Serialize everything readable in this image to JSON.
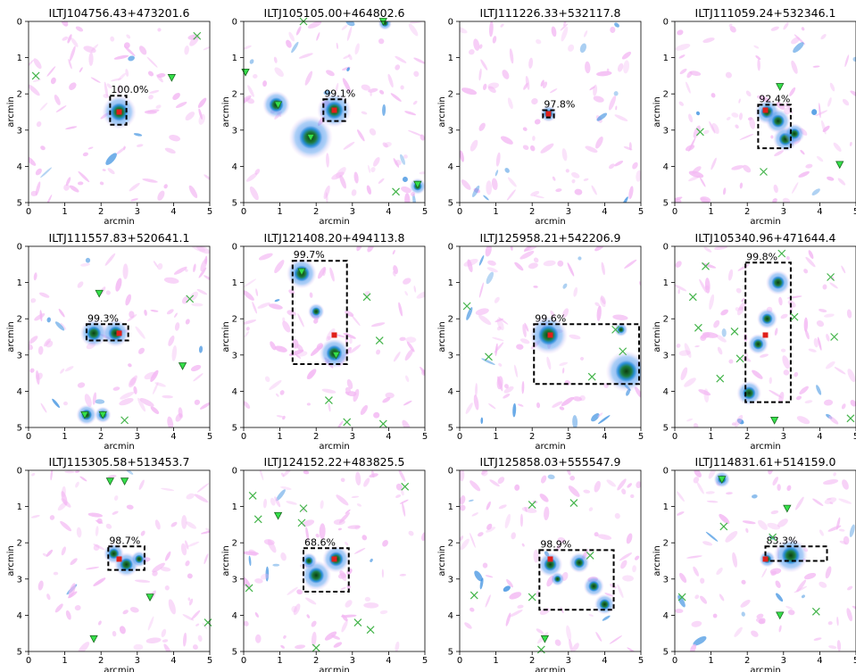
{
  "figure": {
    "xlabel": "arcmin",
    "ylabel": "arcmin",
    "x_ticks": [
      "0",
      "1",
      "2",
      "3",
      "4",
      "5"
    ],
    "y_ticks": [
      "0",
      "1",
      "2",
      "3",
      "4",
      "5"
    ]
  },
  "colors": {
    "background": "#ffffff",
    "faint": "#f3b8f3",
    "mid": "#2a8fd8",
    "core": "#1c7a3a",
    "center": "#e0201b",
    "marker_triangle": "#35e04a",
    "marker_x": "#43b44a",
    "box": "#000000"
  },
  "chart_data": [
    {
      "type": "image",
      "title": "ILTJ104756.43+473201.6",
      "xlim": [
        0,
        5
      ],
      "ylim": [
        5,
        0
      ],
      "detection_box": {
        "x": [
          2.25,
          2.7
        ],
        "y": [
          2.05,
          2.85
        ]
      },
      "confidence_label": "100.0%",
      "center": [
        2.5,
        2.5
      ],
      "sources": [
        {
          "x": 2.5,
          "y": 2.5,
          "size": 0.25
        }
      ],
      "triangles": [
        [
          3.95,
          1.55
        ]
      ],
      "crosses": [
        [
          0.2,
          1.5
        ],
        [
          4.65,
          0.4
        ]
      ]
    },
    {
      "type": "image",
      "title": "ILTJ105105.00+464802.6",
      "xlim": [
        0,
        5
      ],
      "ylim": [
        5,
        0
      ],
      "detection_box": {
        "x": [
          2.2,
          2.8
        ],
        "y": [
          2.15,
          2.75
        ]
      },
      "confidence_label": "99.1%",
      "center": [
        2.5,
        2.45
      ],
      "sources": [
        {
          "x": 2.5,
          "y": 2.45,
          "size": 0.25
        },
        {
          "x": 1.85,
          "y": 3.2,
          "size": 0.32
        },
        {
          "x": 0.9,
          "y": 2.3,
          "size": 0.2
        },
        {
          "x": 4.8,
          "y": 4.55,
          "size": 0.12
        },
        {
          "x": 3.9,
          "y": 0.05,
          "size": 0.1
        }
      ],
      "triangles": [
        [
          1.85,
          3.2
        ],
        [
          0.95,
          2.3
        ],
        [
          4.8,
          4.5
        ],
        [
          0.05,
          1.4
        ],
        [
          3.85,
          0.0
        ]
      ],
      "crosses": [
        [
          1.65,
          0.0
        ],
        [
          4.2,
          4.7
        ]
      ]
    },
    {
      "type": "image",
      "title": "ILTJ111226.33+532117.8",
      "xlim": [
        0,
        5
      ],
      "ylim": [
        5,
        0
      ],
      "detection_box": {
        "x": [
          2.3,
          2.6
        ],
        "y": [
          2.45,
          2.65
        ]
      },
      "confidence_label": "97.8%",
      "center": [
        2.45,
        2.55
      ],
      "sources": [
        {
          "x": 2.45,
          "y": 2.55,
          "size": 0.12
        }
      ],
      "triangles": [],
      "crosses": []
    },
    {
      "type": "image",
      "title": "ILTJ111059.24+532346.1",
      "xlim": [
        0,
        5
      ],
      "ylim": [
        5,
        0
      ],
      "detection_box": {
        "x": [
          2.3,
          3.2
        ],
        "y": [
          2.3,
          3.5
        ]
      },
      "confidence_label": "92.4%",
      "center": [
        2.5,
        2.45
      ],
      "sources": [
        {
          "x": 2.55,
          "y": 2.5,
          "size": 0.18
        },
        {
          "x": 2.85,
          "y": 2.75,
          "size": 0.18
        },
        {
          "x": 3.05,
          "y": 3.25,
          "size": 0.18
        },
        {
          "x": 3.3,
          "y": 3.1,
          "size": 0.15
        }
      ],
      "triangles": [
        [
          2.9,
          1.8
        ],
        [
          4.55,
          3.95
        ]
      ],
      "crosses": [
        [
          0.7,
          3.05
        ],
        [
          2.45,
          4.15
        ]
      ]
    },
    {
      "type": "image",
      "title": "ILTJ111557.83+520641.1",
      "xlim": [
        0,
        5
      ],
      "ylim": [
        5,
        0
      ],
      "detection_box": {
        "x": [
          1.6,
          2.75
        ],
        "y": [
          2.15,
          2.6
        ]
      },
      "confidence_label": "99.3%",
      "center": [
        2.5,
        2.4
      ],
      "sources": [
        {
          "x": 1.8,
          "y": 2.4,
          "size": 0.2
        },
        {
          "x": 2.4,
          "y": 2.4,
          "size": 0.2
        },
        {
          "x": 1.6,
          "y": 4.65,
          "size": 0.15
        },
        {
          "x": 2.05,
          "y": 4.65,
          "size": 0.12
        }
      ],
      "triangles": [
        [
          1.95,
          1.3
        ],
        [
          4.25,
          3.3
        ],
        [
          1.55,
          4.65
        ],
        [
          2.05,
          4.65
        ]
      ],
      "crosses": [
        [
          4.45,
          1.45
        ],
        [
          2.65,
          4.8
        ]
      ]
    },
    {
      "type": "image",
      "title": "ILTJ121408.20+494113.8",
      "xlim": [
        0,
        5
      ],
      "ylim": [
        5,
        0
      ],
      "detection_box": {
        "x": [
          1.35,
          2.85
        ],
        "y": [
          0.4,
          3.25
        ]
      },
      "confidence_label": "99.7%",
      "center": [
        2.5,
        2.45
      ],
      "sources": [
        {
          "x": 1.6,
          "y": 0.75,
          "size": 0.22
        },
        {
          "x": 2.5,
          "y": 2.95,
          "size": 0.22
        },
        {
          "x": 2.0,
          "y": 1.8,
          "size": 0.12
        }
      ],
      "triangles": [
        [
          1.6,
          0.7
        ],
        [
          2.55,
          3.0
        ]
      ],
      "crosses": [
        [
          3.4,
          1.4
        ],
        [
          3.75,
          2.6
        ],
        [
          2.35,
          4.25
        ],
        [
          2.85,
          4.85
        ],
        [
          3.85,
          4.9
        ]
      ]
    },
    {
      "type": "image",
      "title": "ILTJ125958.21+542206.9",
      "xlim": [
        0,
        5
      ],
      "ylim": [
        5,
        0
      ],
      "detection_box": {
        "x": [
          2.05,
          4.95
        ],
        "y": [
          2.15,
          3.8
        ]
      },
      "confidence_label": "99.6%",
      "center": [
        2.5,
        2.45
      ],
      "sources": [
        {
          "x": 2.45,
          "y": 2.45,
          "size": 0.28
        },
        {
          "x": 4.6,
          "y": 3.45,
          "size": 0.3
        },
        {
          "x": 4.45,
          "y": 2.3,
          "size": 0.1
        }
      ],
      "triangles": [],
      "crosses": [
        [
          0.2,
          1.65
        ],
        [
          0.8,
          3.05
        ],
        [
          3.65,
          3.6
        ],
        [
          4.5,
          2.9
        ],
        [
          4.3,
          2.3
        ]
      ]
    },
    {
      "type": "image",
      "title": "ILTJ105340.96+471644.4",
      "xlim": [
        0,
        5
      ],
      "ylim": [
        5,
        0
      ],
      "detection_box": {
        "x": [
          1.95,
          3.2
        ],
        "y": [
          0.45,
          4.3
        ]
      },
      "confidence_label": "99.8%",
      "center": [
        2.5,
        2.45
      ],
      "sources": [
        {
          "x": 2.85,
          "y": 1.0,
          "size": 0.18
        },
        {
          "x": 2.55,
          "y": 2.0,
          "size": 0.15
        },
        {
          "x": 2.3,
          "y": 2.7,
          "size": 0.15
        },
        {
          "x": 2.05,
          "y": 4.05,
          "size": 0.18
        }
      ],
      "triangles": [
        [
          2.75,
          4.8
        ]
      ],
      "crosses": [
        [
          0.85,
          0.55
        ],
        [
          0.5,
          1.4
        ],
        [
          0.65,
          2.25
        ],
        [
          1.65,
          2.35
        ],
        [
          1.8,
          3.1
        ],
        [
          1.25,
          3.65
        ],
        [
          2.95,
          0.2
        ],
        [
          3.3,
          1.95
        ],
        [
          4.3,
          0.85
        ],
        [
          4.4,
          2.5
        ],
        [
          4.85,
          4.75
        ]
      ]
    },
    {
      "type": "image",
      "title": "ILTJ115305.58+513453.7",
      "xlim": [
        0,
        5
      ],
      "ylim": [
        5,
        0
      ],
      "detection_box": {
        "x": [
          2.2,
          3.2
        ],
        "y": [
          2.1,
          2.75
        ]
      },
      "confidence_label": "98.7%",
      "center": [
        2.5,
        2.45
      ],
      "sources": [
        {
          "x": 2.35,
          "y": 2.3,
          "size": 0.15
        },
        {
          "x": 2.7,
          "y": 2.6,
          "size": 0.18
        },
        {
          "x": 3.05,
          "y": 2.45,
          "size": 0.12
        }
      ],
      "triangles": [
        [
          2.25,
          0.3
        ],
        [
          2.65,
          0.3
        ],
        [
          3.35,
          3.5
        ],
        [
          1.8,
          4.65
        ]
      ],
      "crosses": [
        [
          4.95,
          4.2
        ]
      ]
    },
    {
      "type": "image",
      "title": "ILTJ124152.22+483825.5",
      "xlim": [
        0,
        5
      ],
      "ylim": [
        5,
        0
      ],
      "detection_box": {
        "x": [
          1.65,
          2.9
        ],
        "y": [
          2.15,
          3.35
        ]
      },
      "confidence_label": "68.6%",
      "center": [
        2.5,
        2.45
      ],
      "sources": [
        {
          "x": 2.0,
          "y": 2.9,
          "size": 0.22
        },
        {
          "x": 2.55,
          "y": 2.45,
          "size": 0.2
        },
        {
          "x": 1.8,
          "y": 2.5,
          "size": 0.12
        }
      ],
      "triangles": [
        [
          0.95,
          1.25
        ]
      ],
      "crosses": [
        [
          0.25,
          0.7
        ],
        [
          0.4,
          1.35
        ],
        [
          1.65,
          1.05
        ],
        [
          1.6,
          1.45
        ],
        [
          0.15,
          3.25
        ],
        [
          2.0,
          4.9
        ],
        [
          3.15,
          4.2
        ],
        [
          3.5,
          4.4
        ],
        [
          4.45,
          0.45
        ]
      ]
    },
    {
      "type": "image",
      "title": "ILTJ125858.03+555547.9",
      "xlim": [
        0,
        5
      ],
      "ylim": [
        5,
        0
      ],
      "detection_box": {
        "x": [
          2.2,
          4.25
        ],
        "y": [
          2.2,
          3.85
        ]
      },
      "confidence_label": "98.9%",
      "center": [
        2.5,
        2.45
      ],
      "sources": [
        {
          "x": 2.5,
          "y": 2.6,
          "size": 0.18
        },
        {
          "x": 3.3,
          "y": 2.55,
          "size": 0.15
        },
        {
          "x": 3.7,
          "y": 3.2,
          "size": 0.15
        },
        {
          "x": 4.0,
          "y": 3.7,
          "size": 0.15
        },
        {
          "x": 2.7,
          "y": 3.0,
          "size": 0.1
        }
      ],
      "triangles": [
        [
          2.35,
          4.65
        ]
      ],
      "crosses": [
        [
          2.0,
          0.95
        ],
        [
          3.15,
          0.9
        ],
        [
          3.6,
          2.35
        ],
        [
          0.4,
          3.45
        ],
        [
          2.0,
          3.5
        ],
        [
          2.25,
          4.95
        ]
      ]
    },
    {
      "type": "image",
      "title": "ILTJ114831.61+514159.0",
      "xlim": [
        0,
        5
      ],
      "ylim": [
        5,
        0
      ],
      "detection_box": {
        "x": [
          2.5,
          4.2
        ],
        "y": [
          2.1,
          2.5
        ]
      },
      "confidence_label": "83.3%",
      "center": [
        2.5,
        2.45
      ],
      "sources": [
        {
          "x": 3.2,
          "y": 2.35,
          "size": 0.25
        },
        {
          "x": 2.55,
          "y": 2.45,
          "size": 0.12
        },
        {
          "x": 1.3,
          "y": 0.25,
          "size": 0.12
        }
      ],
      "triangles": [
        [
          3.1,
          1.05
        ],
        [
          2.9,
          4.0
        ],
        [
          1.3,
          0.25
        ]
      ],
      "crosses": [
        [
          1.35,
          1.55
        ],
        [
          2.7,
          1.85
        ],
        [
          0.2,
          3.5
        ],
        [
          3.9,
          3.9
        ]
      ]
    }
  ]
}
